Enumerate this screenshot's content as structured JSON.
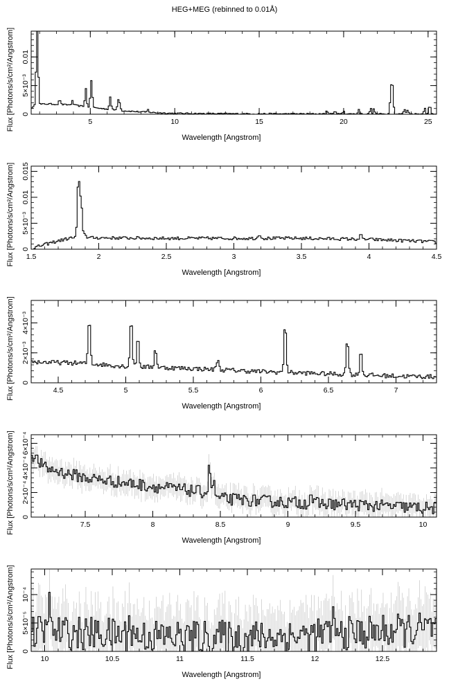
{
  "title": "HEG+MEG (rebinned to 0.01Å)",
  "chart_data": [
    {
      "type": "line",
      "xlabel": "Wavelength [Angstrom]",
      "ylabel": "Flux [Photons/s/cm²/Angstrom]",
      "xlim": [
        1.5,
        25.5
      ],
      "ylim": [
        0,
        0.0145
      ],
      "xticks": [
        5,
        10,
        15,
        20,
        25
      ],
      "yticks": [
        0,
        0.005,
        0.01
      ],
      "ytick_labels": [
        "0",
        "5×10⁻³",
        "0.01"
      ],
      "continuum": [
        [
          1.6,
          0.0012
        ],
        [
          1.8,
          0.0017
        ],
        [
          2.5,
          0.0018
        ],
        [
          4,
          0.0016
        ],
        [
          5,
          0.0012
        ],
        [
          6,
          0.0009
        ],
        [
          7,
          0.0006
        ],
        [
          8,
          0.0004
        ],
        [
          9,
          0.00025
        ],
        [
          10,
          0.00015
        ],
        [
          12,
          0.0001
        ],
        [
          15,
          7e-05
        ],
        [
          20,
          5e-05
        ],
        [
          25.5,
          4e-05
        ]
      ],
      "lines": [
        [
          1.85,
          0.0148
        ],
        [
          1.87,
          0.0092
        ],
        [
          3.19,
          0.0026
        ],
        [
          3.94,
          0.0023
        ],
        [
          4.73,
          0.0045
        ],
        [
          5.04,
          0.0046
        ],
        [
          5.1,
          0.0032
        ],
        [
          6.18,
          0.0031
        ],
        [
          6.65,
          0.0024
        ],
        [
          6.74,
          0.0018
        ],
        [
          8.42,
          0.0008
        ],
        [
          19.0,
          0.0006
        ],
        [
          19.5,
          0.0007
        ],
        [
          20.0,
          0.0006
        ],
        [
          20.9,
          0.0008
        ],
        [
          21.6,
          0.001
        ],
        [
          21.8,
          0.0009
        ],
        [
          22.8,
          0.0045
        ],
        [
          22.9,
          0.0046
        ],
        [
          23.6,
          0.0009
        ],
        [
          23.8,
          0.0008
        ],
        [
          24.8,
          0.0012
        ],
        [
          25.1,
          0.0016
        ]
      ],
      "noise": 0.00012,
      "errors": false
    },
    {
      "type": "line",
      "xlabel": "Wavelength [Angstrom]",
      "ylabel": "Flux [Photons/s/cm²/Angstrom]",
      "xlim": [
        1.5,
        4.5
      ],
      "ylim": [
        0,
        0.016
      ],
      "xticks": [
        1.5,
        2,
        2.5,
        3,
        3.5,
        4,
        4.5
      ],
      "yticks": [
        0,
        0.005,
        0.01,
        0.015
      ],
      "ytick_labels": [
        "0",
        "5×10⁻³",
        "0.01",
        "0.015"
      ],
      "continuum": [
        [
          1.5,
          0.0001
        ],
        [
          1.6,
          0.0009
        ],
        [
          1.7,
          0.0016
        ],
        [
          1.8,
          0.0022
        ],
        [
          2.0,
          0.0022
        ],
        [
          2.5,
          0.0021
        ],
        [
          3.0,
          0.0021
        ],
        [
          3.5,
          0.0021
        ],
        [
          4.0,
          0.0019
        ],
        [
          4.5,
          0.0014
        ]
      ],
      "lines": [
        [
          1.85,
          0.0137
        ],
        [
          1.87,
          0.0093
        ],
        [
          1.9,
          0.003
        ],
        [
          3.19,
          0.003
        ],
        [
          3.94,
          0.0027
        ],
        [
          4.27,
          0.0017
        ]
      ],
      "noise": 0.0003,
      "errors": false
    },
    {
      "type": "line",
      "xlabel": "Wavelength [Angstrom]",
      "ylabel": "Flux [Photons/s/cm²/Angstrom]",
      "xlim": [
        4.3,
        7.3
      ],
      "ylim": [
        0,
        0.0055
      ],
      "xticks": [
        4.5,
        5,
        5.5,
        6,
        6.5,
        7
      ],
      "yticks": [
        0,
        0.002,
        0.004
      ],
      "ytick_labels": [
        "0",
        "2×10⁻³",
        "4×10⁻³"
      ],
      "continuum": [
        [
          4.3,
          0.0014
        ],
        [
          4.7,
          0.0013
        ],
        [
          5.0,
          0.0011
        ],
        [
          5.5,
          0.00095
        ],
        [
          6.0,
          0.00075
        ],
        [
          6.5,
          0.0006
        ],
        [
          7.0,
          0.00045
        ],
        [
          7.3,
          0.0004
        ]
      ],
      "lines": [
        [
          4.73,
          0.0044
        ],
        [
          5.04,
          0.0044
        ],
        [
          5.09,
          0.0031
        ],
        [
          5.22,
          0.0023
        ],
        [
          5.68,
          0.0016
        ],
        [
          6.18,
          0.004
        ],
        [
          6.64,
          0.003
        ],
        [
          6.74,
          0.0022
        ]
      ],
      "noise": 0.00015,
      "errors": false
    },
    {
      "type": "line",
      "xlabel": "Wavelength [Angstrom]",
      "ylabel": "Flux [Photons/s/cm²/Angstrom]",
      "xlim": [
        7.1,
        10.1
      ],
      "ylim": [
        0,
        0.00067
      ],
      "xticks": [
        7.5,
        8,
        8.5,
        9,
        9.5,
        10
      ],
      "yticks": [
        0,
        0.0002,
        0.0004,
        0.0006
      ],
      "ytick_labels": [
        "0",
        "2×10⁻⁴",
        "4×10⁻⁴",
        "6×10⁻⁴"
      ],
      "continuum": [
        [
          7.1,
          0.00052
        ],
        [
          7.2,
          0.0004
        ],
        [
          7.5,
          0.00032
        ],
        [
          8.0,
          0.00025
        ],
        [
          8.4,
          0.0002
        ],
        [
          8.5,
          0.00015
        ],
        [
          9.0,
          0.00012
        ],
        [
          9.5,
          0.0001
        ],
        [
          10.1,
          7e-05
        ]
      ],
      "lines": [
        [
          8.42,
          0.00042
        ],
        [
          8.45,
          0.00028
        ],
        [
          9.17,
          0.0002
        ]
      ],
      "noise": 5e-05,
      "errors": true
    },
    {
      "type": "line",
      "xlabel": "Wavelength [Angstrom]",
      "ylabel": "Flux [Photons/s/cm²/Angstrom]",
      "xlim": [
        9.9,
        12.9
      ],
      "ylim": [
        0,
        0.000145
      ],
      "xticks": [
        10,
        10.5,
        11,
        11.5,
        12,
        12.5
      ],
      "yticks": [
        0,
        5e-05,
        0.0001
      ],
      "ytick_labels": [
        "0",
        "5×10⁻⁵",
        "10⁻⁴"
      ],
      "continuum": [
        [
          9.9,
          3.5e-05
        ],
        [
          10.5,
          3e-05
        ],
        [
          11.0,
          2.5e-05
        ],
        [
          11.5,
          2.5e-05
        ],
        [
          12.0,
          2.8e-05
        ],
        [
          12.5,
          3.5e-05
        ],
        [
          12.9,
          4e-05
        ]
      ],
      "lines": [
        [
          10.03,
          9e-05
        ],
        [
          10.63,
          6e-05
        ],
        [
          12.13,
          7e-05
        ]
      ],
      "noise": 3e-05,
      "errors": true
    }
  ]
}
